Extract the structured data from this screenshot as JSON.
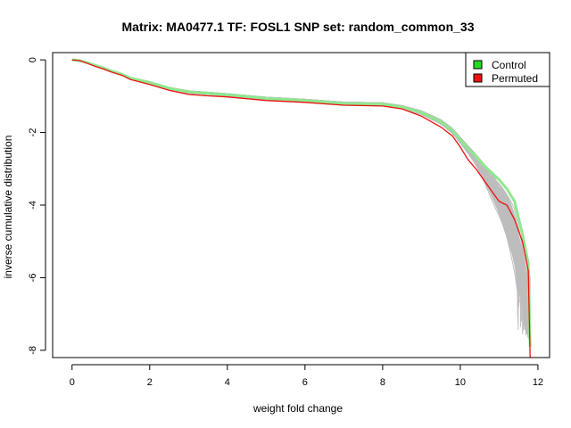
{
  "chart_data": {
    "type": "line",
    "title": "Matrix: MA0477.1 TF: FOSL1 SNP set: random_common_33",
    "xlabel": "weight fold change",
    "ylabel": "inverse cumulative distribution",
    "xlim": [
      -0.5,
      12.3
    ],
    "ylim": [
      -8.2,
      0.2
    ],
    "x_ticks": [
      0,
      2,
      4,
      6,
      8,
      10,
      12
    ],
    "x_tick_labels": [
      "0",
      "2",
      "4",
      "6",
      "8",
      "10",
      "12"
    ],
    "y_ticks": [
      0,
      -2,
      -4,
      -6,
      -8
    ],
    "y_tick_labels": [
      "0",
      "-2",
      "-4",
      "-6",
      "-8"
    ],
    "grid": false,
    "legend": {
      "position": "top-right",
      "entries": [
        {
          "label": "Control",
          "color": "#22dd22"
        },
        {
          "label": "Permuted",
          "color": "#ee1111"
        }
      ]
    },
    "background_color": "#bdbdbd",
    "background_count": 100,
    "series": [
      {
        "name": "Control",
        "color": "#8ee88e",
        "x": [
          0,
          0.2,
          0.4,
          0.6,
          0.8,
          1.0,
          1.3,
          1.5,
          2.0,
          2.5,
          3.0,
          3.5,
          4.0,
          5.0,
          6.0,
          7.0,
          8.0,
          8.5,
          9.0,
          9.5,
          9.8,
          10.0,
          10.2,
          10.4,
          10.6,
          10.8,
          11.0,
          11.2,
          11.4,
          11.6,
          11.75,
          11.8
        ],
        "y": [
          0,
          -0.02,
          -0.08,
          -0.15,
          -0.22,
          -0.3,
          -0.4,
          -0.5,
          -0.62,
          -0.78,
          -0.88,
          -0.92,
          -0.96,
          -1.06,
          -1.12,
          -1.2,
          -1.22,
          -1.3,
          -1.45,
          -1.7,
          -1.95,
          -2.2,
          -2.45,
          -2.65,
          -2.9,
          -3.1,
          -3.3,
          -3.55,
          -3.9,
          -4.8,
          -5.6,
          -7.9
        ]
      },
      {
        "name": "Permuted",
        "color": "#ee1111",
        "x": [
          0,
          0.2,
          0.4,
          0.6,
          0.8,
          1.0,
          1.3,
          1.5,
          2.0,
          2.5,
          3.0,
          3.5,
          4.0,
          5.0,
          6.0,
          7.0,
          8.0,
          8.5,
          9.0,
          9.5,
          9.8,
          10.0,
          10.2,
          10.4,
          10.6,
          10.8,
          11.0,
          11.2,
          11.4,
          11.6,
          11.75,
          11.8
        ],
        "y": [
          0,
          -0.02,
          -0.1,
          -0.18,
          -0.25,
          -0.33,
          -0.43,
          -0.54,
          -0.68,
          -0.84,
          -0.95,
          -0.99,
          -1.02,
          -1.12,
          -1.17,
          -1.25,
          -1.27,
          -1.35,
          -1.55,
          -1.85,
          -2.1,
          -2.4,
          -2.75,
          -3.0,
          -3.3,
          -3.6,
          -3.9,
          -4.0,
          -4.4,
          -5.0,
          -5.8,
          -8.3
        ]
      }
    ]
  }
}
